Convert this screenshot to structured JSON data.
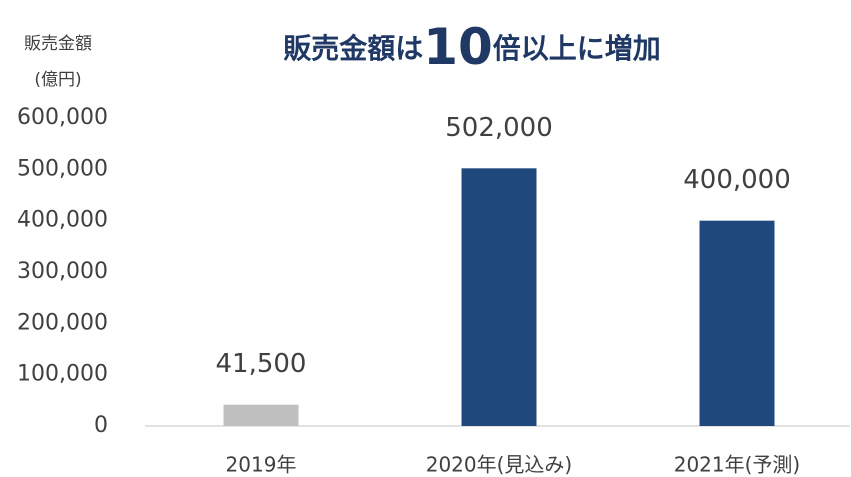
{
  "chart_data": {
    "type": "bar",
    "title": [
      "販売金額は",
      "10",
      "倍以上に増加"
    ],
    "y_label": [
      "販売金額",
      "(億円)"
    ],
    "categories": [
      "2019年",
      "2020年(見込み)",
      "2021年(予測)"
    ],
    "values": [
      41500,
      502000,
      400000
    ],
    "value_labels": [
      "41,500",
      "502,000",
      "400,000"
    ],
    "colors": [
      "#bfbfbf",
      "#1f497d",
      "#1f497d"
    ],
    "ylim": [
      0,
      600000
    ],
    "yticks": [
      0,
      {
        "value": 100000,
        "label": "100,000"
      },
      {
        "value": 200000,
        "label": "200,000"
      },
      {
        "value": 300000,
        "label": "300,000"
      },
      {
        "value": 400000,
        "label": "400,000"
      },
      {
        "value": 500000,
        "label": "500,000"
      },
      {
        "value": 600000,
        "label": "600,000"
      }
    ],
    "grid": false
  }
}
